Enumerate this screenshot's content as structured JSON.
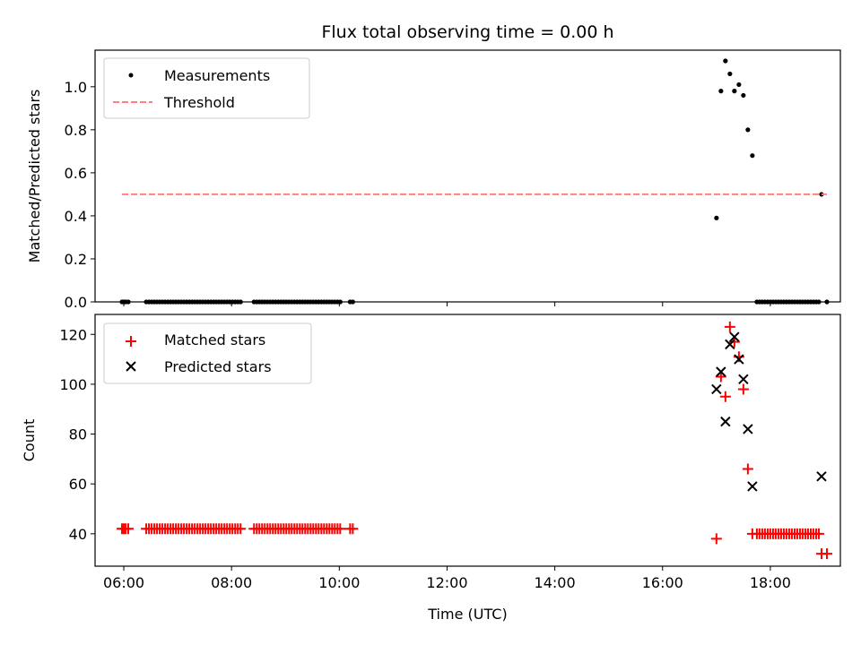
{
  "chart_data": [
    {
      "type": "scatter",
      "title": "Flux total observing time = 0.00 h",
      "xlabel": "",
      "ylabel": "Matched/Predicted stars",
      "xlim": [
        "05:28",
        "19:18"
      ],
      "ylim": [
        0,
        1.17
      ],
      "yticks": [
        0.0,
        0.2,
        0.4,
        0.6,
        0.8,
        1.0
      ],
      "ytick_labels": [
        "0.0",
        "0.2",
        "0.4",
        "0.6",
        "0.8",
        "1.0"
      ],
      "legend_position": "upper left",
      "series": [
        {
          "name": "Measurements",
          "marker": "dot",
          "color": "#000000",
          "x": [
            "05:58",
            "06:00",
            "06:02",
            "06:05",
            "06:25",
            "06:28",
            "06:31",
            "06:34",
            "06:37",
            "06:40",
            "06:43",
            "06:46",
            "06:49",
            "06:52",
            "06:55",
            "06:58",
            "07:01",
            "07:04",
            "07:07",
            "07:10",
            "07:13",
            "07:16",
            "07:19",
            "07:22",
            "07:25",
            "07:28",
            "07:31",
            "07:34",
            "07:37",
            "07:40",
            "07:43",
            "07:46",
            "07:49",
            "07:52",
            "07:55",
            "07:58",
            "08:01",
            "08:04",
            "08:07",
            "08:10",
            "08:25",
            "08:28",
            "08:31",
            "08:34",
            "08:37",
            "08:40",
            "08:43",
            "08:46",
            "08:49",
            "08:52",
            "08:55",
            "08:58",
            "09:01",
            "09:04",
            "09:07",
            "09:10",
            "09:13",
            "09:16",
            "09:19",
            "09:22",
            "09:25",
            "09:28",
            "09:31",
            "09:34",
            "09:37",
            "09:40",
            "09:43",
            "09:46",
            "09:49",
            "09:52",
            "09:55",
            "09:58",
            "10:01",
            "10:12",
            "10:15",
            "17:00",
            "17:05",
            "17:10",
            "17:15",
            "17:20",
            "17:25",
            "17:30",
            "17:35",
            "17:40",
            "17:45",
            "17:48",
            "17:51",
            "17:54",
            "17:57",
            "18:00",
            "18:03",
            "18:06",
            "18:09",
            "18:12",
            "18:15",
            "18:18",
            "18:21",
            "18:24",
            "18:27",
            "18:30",
            "18:33",
            "18:36",
            "18:39",
            "18:42",
            "18:45",
            "18:48",
            "18:51",
            "18:54",
            "18:57",
            "19:03"
          ],
          "y": [
            0,
            0,
            0,
            0,
            0,
            0,
            0,
            0,
            0,
            0,
            0,
            0,
            0,
            0,
            0,
            0,
            0,
            0,
            0,
            0,
            0,
            0,
            0,
            0,
            0,
            0,
            0,
            0,
            0,
            0,
            0,
            0,
            0,
            0,
            0,
            0,
            0,
            0,
            0,
            0,
            0,
            0,
            0,
            0,
            0,
            0,
            0,
            0,
            0,
            0,
            0,
            0,
            0,
            0,
            0,
            0,
            0,
            0,
            0,
            0,
            0,
            0,
            0,
            0,
            0,
            0,
            0,
            0,
            0,
            0,
            0,
            0,
            0,
            0,
            0,
            0.39,
            0.98,
            1.12,
            1.06,
            0.98,
            1.01,
            0.96,
            0.8,
            0.68,
            0,
            0,
            0,
            0,
            0,
            0,
            0,
            0,
            0,
            0,
            0,
            0,
            0,
            0,
            0,
            0,
            0,
            0,
            0,
            0,
            0,
            0,
            0,
            0,
            0.5,
            0
          ]
        },
        {
          "name": "Threshold",
          "style": "dashed",
          "color": "#ff8080",
          "x": [
            "05:58",
            "19:03"
          ],
          "y": [
            0.5,
            0.5
          ]
        }
      ]
    },
    {
      "type": "scatter",
      "title": "",
      "xlabel": "Time (UTC)",
      "ylabel": "Count",
      "xlim": [
        "05:28",
        "19:18"
      ],
      "ylim": [
        27,
        128
      ],
      "yticks": [
        40,
        60,
        80,
        100,
        120
      ],
      "ytick_labels": [
        "40",
        "60",
        "80",
        "100",
        "120"
      ],
      "xticks": [
        "06:00",
        "08:00",
        "10:00",
        "12:00",
        "14:00",
        "16:00",
        "18:00"
      ],
      "xtick_labels": [
        "06:00",
        "08:00",
        "10:00",
        "12:00",
        "14:00",
        "16:00",
        "18:00"
      ],
      "legend_position": "upper left",
      "series": [
        {
          "name": "Matched stars",
          "marker": "plus",
          "color": "#ff0000",
          "x": [
            "05:58",
            "06:00",
            "06:02",
            "06:05",
            "06:25",
            "06:28",
            "06:31",
            "06:34",
            "06:37",
            "06:40",
            "06:43",
            "06:46",
            "06:49",
            "06:52",
            "06:55",
            "06:58",
            "07:01",
            "07:04",
            "07:07",
            "07:10",
            "07:13",
            "07:16",
            "07:19",
            "07:22",
            "07:25",
            "07:28",
            "07:31",
            "07:34",
            "07:37",
            "07:40",
            "07:43",
            "07:46",
            "07:49",
            "07:52",
            "07:55",
            "07:58",
            "08:01",
            "08:04",
            "08:07",
            "08:10",
            "08:25",
            "08:28",
            "08:31",
            "08:34",
            "08:37",
            "08:40",
            "08:43",
            "08:46",
            "08:49",
            "08:52",
            "08:55",
            "08:58",
            "09:01",
            "09:04",
            "09:07",
            "09:10",
            "09:13",
            "09:16",
            "09:19",
            "09:22",
            "09:25",
            "09:28",
            "09:31",
            "09:34",
            "09:37",
            "09:40",
            "09:43",
            "09:46",
            "09:49",
            "09:52",
            "09:55",
            "09:58",
            "10:01",
            "10:12",
            "10:15",
            "17:00",
            "17:05",
            "17:10",
            "17:15",
            "17:20",
            "17:25",
            "17:30",
            "17:35",
            "17:40",
            "17:45",
            "17:48",
            "17:51",
            "17:54",
            "17:57",
            "18:00",
            "18:03",
            "18:06",
            "18:09",
            "18:12",
            "18:15",
            "18:18",
            "18:21",
            "18:24",
            "18:27",
            "18:30",
            "18:33",
            "18:36",
            "18:39",
            "18:42",
            "18:45",
            "18:48",
            "18:51",
            "18:54",
            "18:57",
            "19:03"
          ],
          "y": [
            42,
            42,
            42,
            42,
            42,
            42,
            42,
            42,
            42,
            42,
            42,
            42,
            42,
            42,
            42,
            42,
            42,
            42,
            42,
            42,
            42,
            42,
            42,
            42,
            42,
            42,
            42,
            42,
            42,
            42,
            42,
            42,
            42,
            42,
            42,
            42,
            42,
            42,
            42,
            42,
            42,
            42,
            42,
            42,
            42,
            42,
            42,
            42,
            42,
            42,
            42,
            42,
            42,
            42,
            42,
            42,
            42,
            42,
            42,
            42,
            42,
            42,
            42,
            42,
            42,
            42,
            42,
            42,
            42,
            42,
            42,
            42,
            42,
            42,
            42,
            38,
            103,
            95,
            123,
            117,
            111,
            98,
            66,
            40,
            40,
            40,
            40,
            40,
            40,
            40,
            40,
            40,
            40,
            40,
            40,
            40,
            40,
            40,
            40,
            40,
            40,
            40,
            40,
            40,
            40,
            40,
            40,
            40,
            32,
            32
          ]
        },
        {
          "name": "Predicted stars",
          "marker": "x",
          "color": "#000000",
          "x": [
            "17:00",
            "17:05",
            "17:10",
            "17:15",
            "17:20",
            "17:25",
            "17:30",
            "17:35",
            "17:40",
            "18:57"
          ],
          "y": [
            98,
            105,
            85,
            116,
            119,
            110,
            102,
            82,
            59,
            63
          ]
        }
      ]
    }
  ]
}
